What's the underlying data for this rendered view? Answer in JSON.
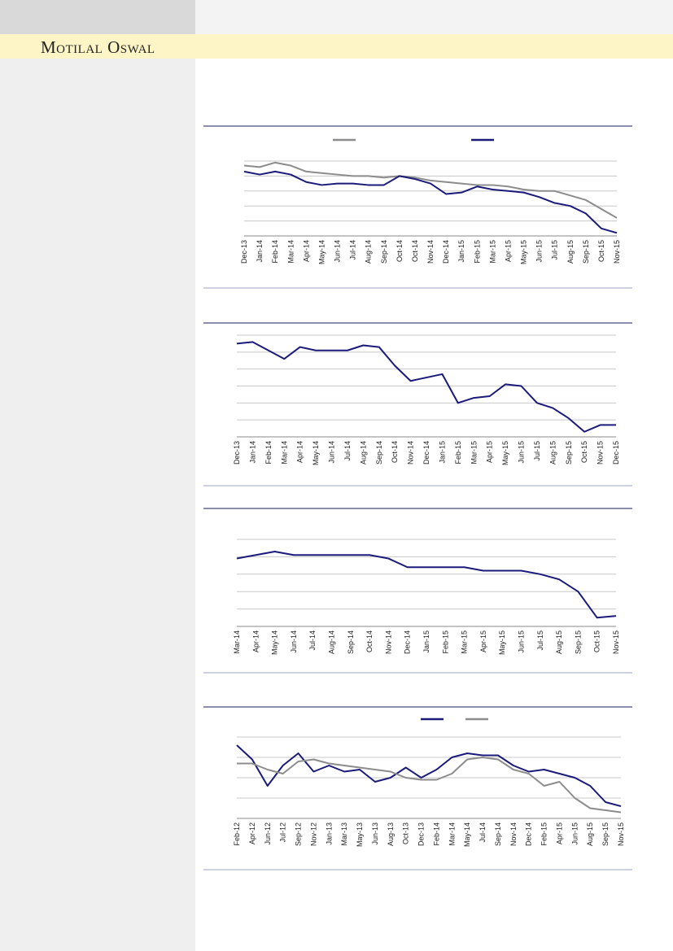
{
  "header": {
    "title": "Motilal Oswal"
  },
  "chart_data": [
    {
      "type": "line",
      "grid": true,
      "legend": "top",
      "ylim": [
        0,
        5
      ],
      "yticks": [
        0,
        1,
        2,
        3,
        4,
        5
      ],
      "categories": [
        "Dec-13",
        "Jan-14",
        "Feb-14",
        "Mar-14",
        "Apr-14",
        "May-14",
        "Jun-14",
        "Jul-14",
        "Aug-14",
        "Sep-14",
        "Oct-14",
        "Oct-14",
        "Nov-14",
        "Dec-14",
        "Jan-15",
        "Feb-15",
        "Mar-15",
        "Apr-15",
        "May-15",
        "Jun-15",
        "Jul-15",
        "Aug-15",
        "Sep-15",
        "Oct-15",
        "Nov-15"
      ],
      "series": [
        {
          "color": "#8c8c8c",
          "values": [
            4.7,
            4.6,
            4.9,
            4.7,
            4.3,
            4.2,
            4.1,
            4.0,
            4.0,
            3.9,
            4.0,
            3.9,
            3.7,
            3.6,
            3.5,
            3.4,
            3.4,
            3.3,
            3.1,
            3.0,
            3.0,
            2.7,
            2.4,
            1.8,
            1.2
          ]
        },
        {
          "color": "#1a1a7a",
          "values": [
            4.3,
            4.1,
            4.3,
            4.1,
            3.6,
            3.4,
            3.5,
            3.5,
            3.4,
            3.4,
            4.0,
            3.8,
            3.5,
            2.8,
            2.9,
            3.3,
            3.1,
            3.0,
            2.9,
            2.6,
            2.2,
            2.0,
            1.5,
            0.5,
            0.2
          ]
        }
      ]
    },
    {
      "type": "line",
      "grid": true,
      "ylim": [
        0,
        6
      ],
      "yticks": [
        0,
        1,
        2,
        3,
        4,
        5,
        6
      ],
      "categories": [
        "Dec-13",
        "Jan-14",
        "Feb-14",
        "Mar-14",
        "Apr-14",
        "May-14",
        "Jun-14",
        "Jul-14",
        "Aug-14",
        "Sep-14",
        "Oct-14",
        "Nov-14",
        "Dec-14",
        "Jan-15",
        "Feb-15",
        "Mar-15",
        "Apr-15",
        "May-15",
        "Jun-15",
        "Jul-15",
        "Aug-15",
        "Sep-15",
        "Oct-15",
        "Nov-15",
        "Dec-15"
      ],
      "series": [
        {
          "color": "#1a1a7a",
          "values": [
            5.5,
            5.6,
            5.1,
            4.6,
            5.3,
            5.1,
            5.1,
            5.1,
            5.4,
            5.3,
            4.2,
            3.3,
            3.5,
            3.7,
            2.0,
            2.3,
            2.4,
            3.1,
            3.0,
            2.0,
            1.7,
            1.1,
            0.3,
            0.7,
            0.7
          ]
        }
      ]
    },
    {
      "type": "line",
      "grid": true,
      "ylim": [
        0,
        5
      ],
      "yticks": [
        0,
        1,
        2,
        3,
        4,
        5
      ],
      "categories": [
        "Mar-14",
        "Apr-14",
        "May-14",
        "Jun-14",
        "Jul-14",
        "Aug-14",
        "Sep-14",
        "Oct-14",
        "Nov-14",
        "Dec-14",
        "Jan-15",
        "Feb-15",
        "Mar-15",
        "Apr-15",
        "May-15",
        "Jun-15",
        "Jul-15",
        "Aug-15",
        "Sep-15",
        "Oct-15",
        "Nov-15"
      ],
      "series": [
        {
          "color": "#1a1a7a",
          "values": [
            3.9,
            4.1,
            4.3,
            4.1,
            4.1,
            4.1,
            4.1,
            4.1,
            3.9,
            3.4,
            3.4,
            3.4,
            3.4,
            3.2,
            3.2,
            3.2,
            3.0,
            2.7,
            2.0,
            0.5,
            0.6
          ]
        }
      ]
    },
    {
      "type": "line",
      "grid": true,
      "legend": "top",
      "ylim": [
        0,
        4
      ],
      "yticks": [
        0,
        1,
        2,
        3,
        4
      ],
      "categories": [
        "Feb-12",
        "Apr-12",
        "Jun-12",
        "Jul-12",
        "Sep-12",
        "Nov-12",
        "Jan-13",
        "Mar-13",
        "May-13",
        "Jun-13",
        "Aug-13",
        "Oct-13",
        "Dec-13",
        "Feb-14",
        "Mar-14",
        "May-14",
        "Jul-14",
        "Sep-14",
        "Nov-14",
        "Dec-14",
        "Feb-15",
        "Apr-15",
        "Jun-15",
        "Aug-15",
        "Sep-15",
        "Nov-15"
      ],
      "series": [
        {
          "color": "#1a1a7a",
          "values": [
            3.6,
            2.9,
            1.6,
            2.6,
            3.2,
            2.3,
            2.6,
            2.3,
            2.4,
            1.8,
            2.0,
            2.5,
            2.0,
            2.4,
            3.0,
            3.2,
            3.1,
            3.1,
            2.6,
            2.3,
            2.4,
            2.2,
            2.0,
            1.6,
            0.8,
            0.6
          ]
        },
        {
          "color": "#8c8c8c",
          "values": [
            2.7,
            2.7,
            2.4,
            2.2,
            2.8,
            2.9,
            2.7,
            2.6,
            2.5,
            2.4,
            2.3,
            2.0,
            1.9,
            1.9,
            2.2,
            2.9,
            3.0,
            2.9,
            2.4,
            2.2,
            1.6,
            1.8,
            1.0,
            0.5,
            0.4,
            0.3
          ]
        }
      ]
    }
  ]
}
